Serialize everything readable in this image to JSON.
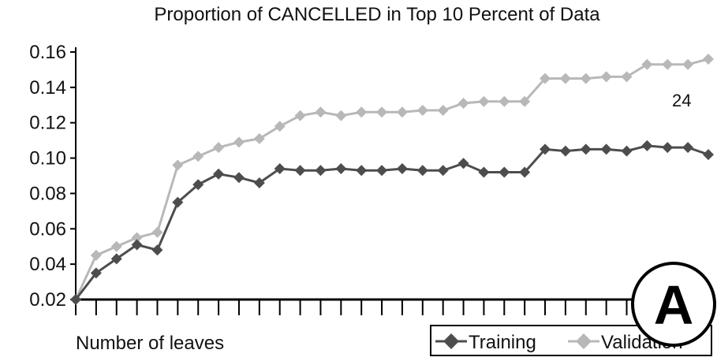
{
  "chart_data": {
    "type": "line",
    "title": "Proportion of CANCELLED in Top 10 Percent of Data",
    "xlabel": "Number of leaves",
    "ylabel": "",
    "ylim": [
      0.02,
      0.16
    ],
    "yticks": [
      "0.02",
      "0.04",
      "0.06",
      "0.08",
      "0.10",
      "0.12",
      "0.14",
      "0.16"
    ],
    "x": [
      1,
      2,
      3,
      4,
      5,
      6,
      7,
      8,
      9,
      10,
      11,
      12,
      13,
      14,
      15,
      16,
      17,
      18,
      19,
      20,
      21,
      22,
      23,
      24,
      25,
      26,
      27,
      28,
      29,
      30,
      31,
      32
    ],
    "xlim": [
      1,
      32
    ],
    "annotation": "24",
    "badge": "A",
    "legend_position": "bottom-right",
    "series": [
      {
        "name": "Training",
        "color": "#4d4d4d",
        "marker": "diamond",
        "values": [
          0.02,
          0.035,
          0.043,
          0.051,
          0.048,
          0.075,
          0.085,
          0.091,
          0.089,
          0.086,
          0.094,
          0.093,
          0.093,
          0.094,
          0.093,
          0.093,
          0.094,
          0.093,
          0.093,
          0.097,
          0.092,
          0.092,
          0.092,
          0.105,
          0.104,
          0.105,
          0.105,
          0.104,
          0.107,
          0.106,
          0.106,
          0.102
        ]
      },
      {
        "name": "Validation",
        "color": "#b8b8b8",
        "marker": "diamond",
        "values": [
          0.02,
          0.045,
          0.05,
          0.055,
          0.058,
          0.096,
          0.101,
          0.106,
          0.109,
          0.111,
          0.118,
          0.124,
          0.126,
          0.124,
          0.126,
          0.126,
          0.126,
          0.127,
          0.127,
          0.131,
          0.132,
          0.132,
          0.132,
          0.145,
          0.145,
          0.145,
          0.146,
          0.146,
          0.153,
          0.153,
          0.153,
          0.156
        ]
      }
    ]
  }
}
